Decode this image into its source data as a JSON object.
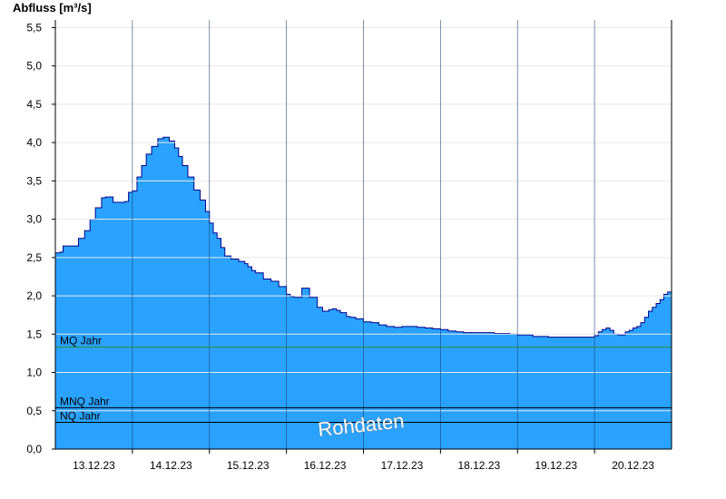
{
  "chart_data": {
    "type": "area",
    "ylabel": "Abfluss [m³/s]",
    "ylim": [
      0,
      5.6
    ],
    "yticks": [
      {
        "v": 0.0,
        "label": "0,0"
      },
      {
        "v": 0.5,
        "label": "0,5"
      },
      {
        "v": 1.0,
        "label": "1,0"
      },
      {
        "v": 1.5,
        "label": "1,5"
      },
      {
        "v": 2.0,
        "label": "2,0"
      },
      {
        "v": 2.5,
        "label": "2,5"
      },
      {
        "v": 3.0,
        "label": "3,0"
      },
      {
        "v": 3.5,
        "label": "3,5"
      },
      {
        "v": 4.0,
        "label": "4,0"
      },
      {
        "v": 4.5,
        "label": "4,5"
      },
      {
        "v": 5.0,
        "label": "5,0"
      },
      {
        "v": 5.5,
        "label": "5,5"
      }
    ],
    "xlim": [
      0,
      8
    ],
    "day_boundaries": [
      1,
      2,
      3,
      4,
      5,
      6,
      7
    ],
    "xticks": [
      {
        "v": 0.5,
        "label": "13.12.23"
      },
      {
        "v": 1.5,
        "label": "14.12.23"
      },
      {
        "v": 2.5,
        "label": "15.12.23"
      },
      {
        "v": 3.5,
        "label": "16.12.23"
      },
      {
        "v": 4.5,
        "label": "17.12.23"
      },
      {
        "v": 5.5,
        "label": "18.12.23"
      },
      {
        "v": 6.5,
        "label": "19.12.23"
      },
      {
        "v": 7.5,
        "label": "20.12.23"
      }
    ],
    "reference_lines": [
      {
        "name": "MQ Jahr",
        "value": 1.33,
        "color": "#2e8b2e"
      },
      {
        "name": "MNQ Jahr",
        "value": 0.54,
        "color": "#000000"
      },
      {
        "name": "NQ Jahr",
        "value": 0.35,
        "color": "#000000"
      }
    ],
    "series": [
      {
        "color": "#29a3ff",
        "line_color": "#00008b",
        "x": [
          0,
          0.06,
          0.1,
          0.25,
          0.3,
          0.38,
          0.45,
          0.52,
          0.6,
          0.65,
          0.75,
          0.8,
          0.9,
          0.95,
          1.0,
          1.06,
          1.12,
          1.18,
          1.25,
          1.33,
          1.4,
          1.48,
          1.55,
          1.6,
          1.65,
          1.72,
          1.8,
          1.88,
          1.95,
          2.0,
          2.05,
          2.1,
          2.15,
          2.2,
          2.28,
          2.38,
          2.46,
          2.5,
          2.55,
          2.6,
          2.7,
          2.8,
          2.9,
          3.0,
          3.05,
          3.1,
          3.2,
          3.3,
          3.4,
          3.47,
          3.55,
          3.6,
          3.65,
          3.7,
          3.78,
          3.83,
          3.9,
          4.0,
          4.1,
          4.2,
          4.3,
          4.4,
          4.5,
          4.6,
          4.7,
          4.8,
          4.9,
          5.0,
          5.1,
          5.2,
          5.3,
          5.4,
          5.5,
          5.6,
          5.7,
          5.8,
          5.9,
          6.0,
          6.2,
          6.4,
          6.5,
          6.6,
          6.8,
          7.0,
          7.05,
          7.1,
          7.15,
          7.2,
          7.25,
          7.3,
          7.4,
          7.45,
          7.5,
          7.55,
          7.6,
          7.65,
          7.7,
          7.75,
          7.8,
          7.85,
          7.9,
          7.95,
          8.0
        ],
        "values": [
          2.56,
          2.57,
          2.65,
          2.65,
          2.75,
          2.85,
          3.0,
          3.15,
          3.28,
          3.29,
          3.22,
          3.22,
          3.23,
          3.35,
          3.37,
          3.55,
          3.7,
          3.85,
          3.95,
          4.05,
          4.07,
          4.02,
          3.93,
          3.82,
          3.7,
          3.55,
          3.38,
          3.25,
          3.1,
          2.95,
          2.82,
          2.75,
          2.63,
          2.52,
          2.48,
          2.45,
          2.42,
          2.38,
          2.33,
          2.3,
          2.22,
          2.19,
          2.12,
          2.02,
          1.99,
          1.98,
          2.1,
          1.98,
          1.85,
          1.8,
          1.82,
          1.83,
          1.81,
          1.78,
          1.73,
          1.72,
          1.7,
          1.66,
          1.65,
          1.62,
          1.6,
          1.59,
          1.6,
          1.6,
          1.59,
          1.58,
          1.57,
          1.56,
          1.54,
          1.53,
          1.52,
          1.52,
          1.52,
          1.52,
          1.51,
          1.51,
          1.5,
          1.49,
          1.47,
          1.46,
          1.46,
          1.46,
          1.46,
          1.48,
          1.53,
          1.56,
          1.58,
          1.55,
          1.5,
          1.49,
          1.53,
          1.55,
          1.58,
          1.6,
          1.65,
          1.72,
          1.8,
          1.85,
          1.9,
          1.95,
          2.02,
          2.05,
          2.07
        ]
      }
    ],
    "watermark": "Rohdaten",
    "grid": "vertical day separators"
  }
}
